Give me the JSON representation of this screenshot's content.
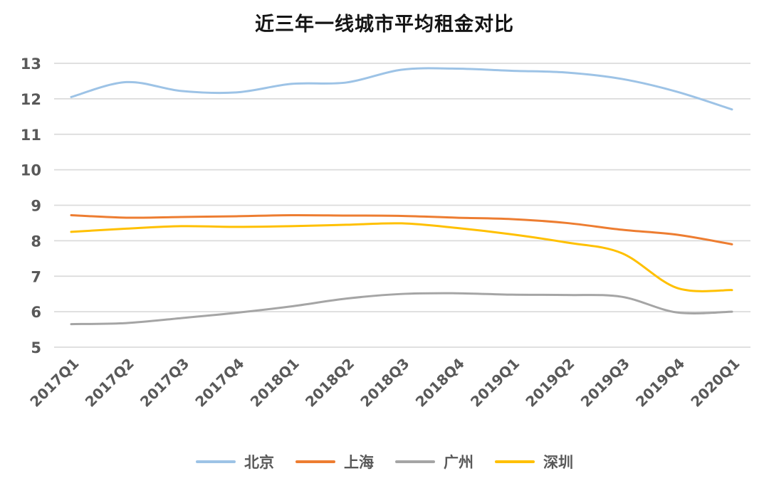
{
  "chart_data": {
    "type": "line",
    "title": "近三年一线城市平均租金对比",
    "categories": [
      "2017Q1",
      "2017Q2",
      "2017Q3",
      "2017Q4",
      "2018Q1",
      "2018Q2",
      "2018Q3",
      "2018Q4",
      "2019Q1",
      "2019Q2",
      "2019Q3",
      "2019Q4",
      "2020Q1"
    ],
    "series": [
      {
        "name": "北京",
        "color": "#9DC3E6",
        "values": [
          12.05,
          12.47,
          12.22,
          12.18,
          12.42,
          12.46,
          12.82,
          12.85,
          12.79,
          12.74,
          12.56,
          12.2,
          11.7
        ]
      },
      {
        "name": "上海",
        "color": "#ED7D31",
        "values": [
          8.72,
          8.65,
          8.67,
          8.69,
          8.72,
          8.71,
          8.7,
          8.65,
          8.61,
          8.5,
          8.31,
          8.17,
          7.9
        ]
      },
      {
        "name": "广州",
        "color": "#A5A5A5",
        "values": [
          5.65,
          5.68,
          5.82,
          5.97,
          6.15,
          6.37,
          6.5,
          6.52,
          6.48,
          6.47,
          6.42,
          5.98,
          6.0
        ]
      },
      {
        "name": "深圳",
        "color": "#FFC000",
        "values": [
          8.25,
          8.34,
          8.41,
          8.39,
          8.41,
          8.45,
          8.49,
          8.36,
          8.18,
          7.95,
          7.65,
          6.67,
          6.61
        ]
      }
    ],
    "xlabel": "",
    "ylabel": "",
    "ylim": [
      5,
      13
    ],
    "yticks": [
      5,
      6,
      7,
      8,
      9,
      10,
      11,
      12,
      13
    ],
    "grid": "horizontal",
    "gridline_color": "#DBDBDB",
    "axis_label_color": "#595959",
    "title_color": "#151515",
    "legend_position": "bottom",
    "line_style": "smooth"
  }
}
